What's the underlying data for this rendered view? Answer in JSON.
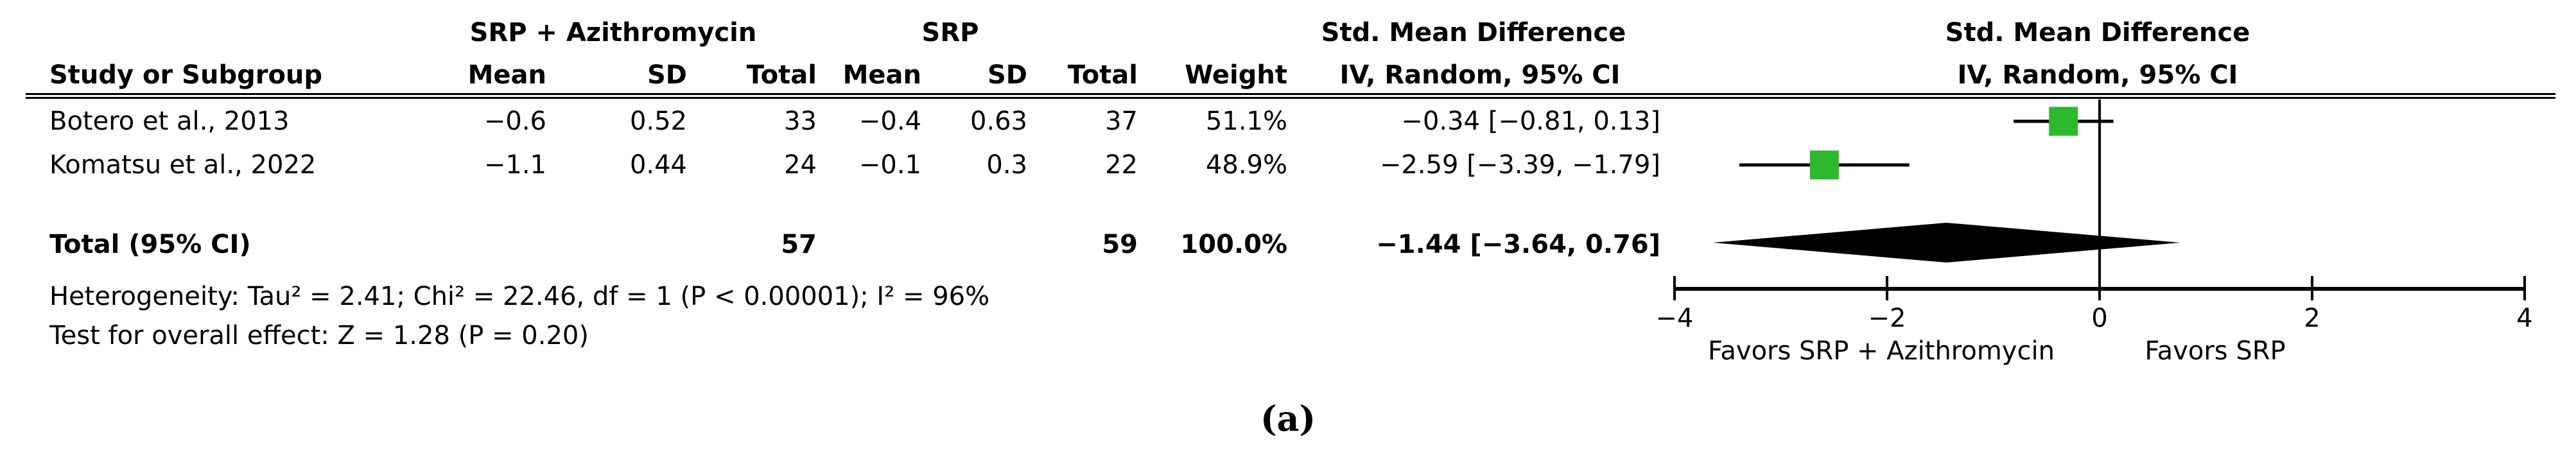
{
  "header": {
    "group1": "SRP + Azithromycin",
    "group2": "SRP",
    "effect_col_title": "Std. Mean Difference",
    "effect_col_subtitle": "IV, Random, 95% CI",
    "plot_title": "Std. Mean Difference",
    "plot_subtitle": "IV, Random, 95% CI",
    "columns": {
      "study": "Study or Subgroup",
      "mean": "Mean",
      "sd": "SD",
      "total": "Total",
      "weight": "Weight"
    }
  },
  "table": {
    "rows": [
      {
        "study": "Botero et al., 2013",
        "mean1": "−0.6",
        "sd1": "0.52",
        "total1": "33",
        "mean2": "−0.4",
        "sd2": "0.63",
        "total2": "37",
        "weight": "51.1%",
        "ci": "−0.34 [−0.81, 0.13]"
      },
      {
        "study": "Komatsu et al., 2022",
        "mean1": "−1.1",
        "sd1": "0.44",
        "total1": "24",
        "mean2": "−0.1",
        "sd2": "0.3",
        "total2": "22",
        "weight": "48.9%",
        "ci": "−2.59 [−3.39, −1.79]"
      }
    ],
    "total": {
      "label": "Total (95% CI)",
      "total1": "57",
      "total2": "59",
      "weight": "100.0%",
      "ci": "−1.44 [−3.64, 0.76]"
    }
  },
  "stats": {
    "heterogeneity": "Heterogeneity: Tau² = 2.41; Chi² = 22.46, df = 1 (P < 0.00001); I² = 96%",
    "overall_effect": "Test for overall effect: Z = 1.28 (P = 0.20)"
  },
  "plot": {
    "marker_color": "#2EB82E",
    "line_color": "#000000",
    "favors_left": "Favors SRP + Azithromycin",
    "favors_right": "Favors SRP"
  },
  "caption": "(a)",
  "chart_data": {
    "type": "forest",
    "effect_measure": "Std. Mean Difference",
    "model": "IV, Random, 95% CI",
    "axis": {
      "range": [
        -4,
        4
      ],
      "ticks": [
        -4,
        -2,
        0,
        2,
        4
      ]
    },
    "studies": [
      {
        "name": "Botero et al., 2013",
        "mean_exp": -0.6,
        "sd_exp": 0.52,
        "n_exp": 33,
        "mean_ctrl": -0.4,
        "sd_ctrl": 0.63,
        "n_ctrl": 37,
        "weight_pct": 51.1,
        "smd": -0.34,
        "ci_low": -0.81,
        "ci_high": 0.13
      },
      {
        "name": "Komatsu et al., 2022",
        "mean_exp": -1.1,
        "sd_exp": 0.44,
        "n_exp": 24,
        "mean_ctrl": -0.1,
        "sd_ctrl": 0.3,
        "n_ctrl": 22,
        "weight_pct": 48.9,
        "smd": -2.59,
        "ci_low": -3.39,
        "ci_high": -1.79
      }
    ],
    "total": {
      "n_exp": 57,
      "n_ctrl": 59,
      "weight_pct": 100.0,
      "smd": -1.44,
      "ci_low": -3.64,
      "ci_high": 0.76
    },
    "heterogeneity": {
      "tau2": 2.41,
      "chi2": 22.46,
      "df": 1,
      "p": "< 0.00001",
      "i2_pct": 96
    },
    "overall_effect": {
      "z": 1.28,
      "p": 0.2
    },
    "favors_left": "Favors SRP + Azithromycin",
    "favors_right": "Favors SRP"
  }
}
